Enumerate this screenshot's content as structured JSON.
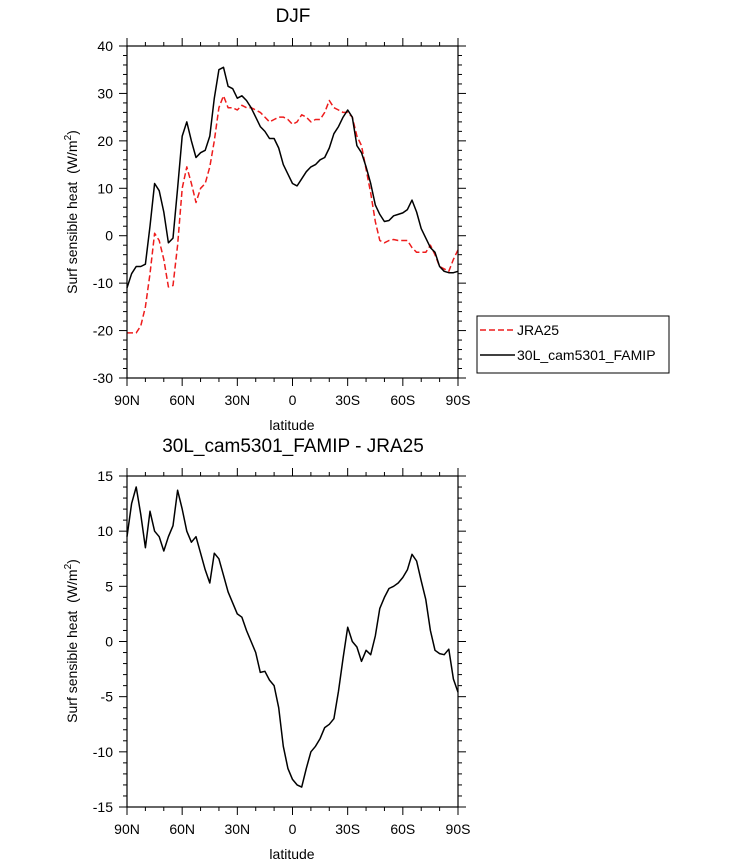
{
  "chart_data": [
    {
      "type": "line",
      "title": "DJF",
      "xlabel": "latitude",
      "ylabel": "Surf sensible heat",
      "ylabel_unit": "(W/m",
      "ylabel_sup": "2",
      "ylabel_close": ")",
      "xlim": [
        90,
        -90
      ],
      "ylim": [
        -30,
        40
      ],
      "xticks": [
        90,
        60,
        30,
        0,
        -30,
        -60,
        -90
      ],
      "xtick_labels": [
        "90N",
        "60N",
        "30N",
        "0",
        "30S",
        "60S",
        "90S"
      ],
      "yticks": [
        -30,
        -20,
        -10,
        0,
        10,
        20,
        30,
        40
      ],
      "ytick_labels": [
        "-30",
        "-20",
        "-10",
        "0",
        "10",
        "20",
        "30",
        "40"
      ],
      "legend": {
        "placement": "outside-right",
        "entries": [
          "JRA25",
          "30L_cam5301_FAMIP"
        ]
      },
      "series": [
        {
          "name": "JRA25",
          "color": "#ee1c1c",
          "dash": "dashed",
          "x": [
            90,
            87.5,
            85,
            82.5,
            80,
            77.5,
            75,
            72.5,
            70,
            67.5,
            65,
            62.5,
            60,
            57.5,
            55,
            52.5,
            50,
            47.5,
            45,
            42.5,
            40,
            37.5,
            35,
            32.5,
            30,
            27.5,
            25,
            22.5,
            20,
            17.5,
            15,
            12.5,
            10,
            7.5,
            5,
            2.5,
            0,
            -2.5,
            -5,
            -7.5,
            -10,
            -12.5,
            -15,
            -17.5,
            -20,
            -22.5,
            -25,
            -27.5,
            -30,
            -32.5,
            -35,
            -37.5,
            -40,
            -42.5,
            -45,
            -47.5,
            -50,
            -52.5,
            -55,
            -57.5,
            -60,
            -62.5,
            -65,
            -67.5,
            -70,
            -72.5,
            -75,
            -77.5,
            -80,
            -82.5,
            -85,
            -87.5,
            -90
          ],
          "values": [
            -20.5,
            -20.5,
            -20.5,
            -19,
            -15,
            -8,
            0.5,
            -1,
            -5,
            -10.8,
            -10.5,
            -2,
            10,
            14.5,
            11,
            7,
            10,
            11,
            14.5,
            20,
            27,
            29.5,
            27,
            27,
            26.5,
            27.5,
            27,
            27,
            26.5,
            26,
            25,
            24,
            24.5,
            25,
            25,
            24.5,
            23.5,
            24,
            25.5,
            25,
            24,
            24.5,
            24.5,
            26,
            28.5,
            27,
            26.5,
            26,
            26,
            25,
            21,
            19,
            14,
            9,
            3,
            -1,
            -1.5,
            -1,
            -0.8,
            -1,
            -1,
            -1,
            -2.5,
            -3.5,
            -3.5,
            -3.5,
            -2,
            -4,
            -6.5,
            -7,
            -7.5,
            -5,
            -3
          ]
        },
        {
          "name": "30L_cam5301_FAMIP",
          "color": "#000000",
          "dash": "solid",
          "x": [
            90,
            87.5,
            85,
            82.5,
            80,
            77.5,
            75,
            72.5,
            70,
            67.5,
            65,
            62.5,
            60,
            57.5,
            55,
            52.5,
            50,
            47.5,
            45,
            42.5,
            40,
            37.5,
            35,
            32.5,
            30,
            27.5,
            25,
            22.5,
            20,
            17.5,
            15,
            12.5,
            10,
            7.5,
            5,
            2.5,
            0,
            -2.5,
            -5,
            -7.5,
            -10,
            -12.5,
            -15,
            -17.5,
            -20,
            -22.5,
            -25,
            -27.5,
            -30,
            -32.5,
            -35,
            -37.5,
            -40,
            -42.5,
            -45,
            -47.5,
            -50,
            -52.5,
            -55,
            -57.5,
            -60,
            -62.5,
            -65,
            -67.5,
            -70,
            -72.5,
            -75,
            -77.5,
            -80,
            -82.5,
            -85,
            -87.5,
            -90
          ],
          "values": [
            -11,
            -8,
            -6.5,
            -6.5,
            -6,
            2,
            11,
            9.5,
            5,
            -1.5,
            -0.5,
            10,
            21,
            24,
            20,
            16.5,
            17.5,
            18,
            21,
            29,
            35,
            35.5,
            31.5,
            31,
            29,
            29.5,
            28.5,
            27,
            25,
            23,
            22,
            20.5,
            20.5,
            18.5,
            15,
            13,
            11,
            10.5,
            12,
            13.5,
            14.5,
            15,
            16,
            16.5,
            18.5,
            21.5,
            23,
            25,
            26.5,
            25,
            19,
            17.5,
            14.5,
            11,
            6.5,
            4.5,
            3,
            3.2,
            4.2,
            4.5,
            4.8,
            5.5,
            7.5,
            5,
            1.5,
            -0.5,
            -2.5,
            -3.5,
            -6.5,
            -7.5,
            -7.8,
            -7.8,
            -7.5
          ]
        }
      ]
    },
    {
      "type": "line",
      "title": "30L_cam5301_FAMIP - JRA25",
      "xlabel": "latitude",
      "ylabel": "Surf sensible heat",
      "ylabel_unit": "(W/m",
      "ylabel_sup": "2",
      "ylabel_close": ")",
      "xlim": [
        90,
        -90
      ],
      "ylim": [
        -15,
        15
      ],
      "xticks": [
        90,
        60,
        30,
        0,
        -30,
        -60,
        -90
      ],
      "xtick_labels": [
        "90N",
        "60N",
        "30N",
        "0",
        "30S",
        "60S",
        "90S"
      ],
      "yticks": [
        -15,
        -10,
        -5,
        0,
        5,
        10,
        15
      ],
      "ytick_labels": [
        "-15",
        "-10",
        "-5",
        "0",
        "5",
        "10",
        "15"
      ],
      "series": [
        {
          "color": "#000000",
          "dash": "solid",
          "x": [
            90,
            87.5,
            85,
            82.5,
            80,
            77.5,
            75,
            72.5,
            70,
            67.5,
            65,
            62.5,
            60,
            57.5,
            55,
            52.5,
            50,
            47.5,
            45,
            42.5,
            40,
            37.5,
            35,
            32.5,
            30,
            27.5,
            25,
            22.5,
            20,
            17.5,
            15,
            12.5,
            10,
            7.5,
            5,
            2.5,
            0,
            -2.5,
            -5,
            -7.5,
            -10,
            -12.5,
            -15,
            -17.5,
            -20,
            -22.5,
            -25,
            -27.5,
            -30,
            -32.5,
            -35,
            -37.5,
            -40,
            -42.5,
            -45,
            -47.5,
            -50,
            -52.5,
            -55,
            -57.5,
            -60,
            -62.5,
            -65,
            -67.5,
            -70,
            -72.5,
            -75,
            -77.5,
            -80,
            -82.5,
            -85,
            -87.5,
            -90
          ],
          "values": [
            9.5,
            12.5,
            14,
            11.5,
            8.5,
            11.8,
            10,
            9.5,
            8.2,
            9.5,
            10.5,
            13.7,
            12,
            10,
            9,
            9.5,
            8,
            6.5,
            5.3,
            8,
            7.5,
            6,
            4.5,
            3.5,
            2.5,
            2.2,
            1,
            0,
            -1,
            -2.8,
            -2.7,
            -3.5,
            -4,
            -6,
            -9.5,
            -11.5,
            -12.5,
            -13,
            -13.2,
            -11.5,
            -10,
            -9.5,
            -8.8,
            -7.8,
            -7.5,
            -7,
            -4.5,
            -1.5,
            1.3,
            0,
            -0.5,
            -1.8,
            -0.8,
            -1.2,
            0.5,
            3,
            4,
            4.8,
            5,
            5.3,
            5.8,
            6.5,
            7.9,
            7.3,
            5.5,
            3.8,
            1,
            -0.8,
            -1.1,
            -1.2,
            -0.7,
            -3.4,
            -4.6
          ]
        }
      ]
    }
  ]
}
